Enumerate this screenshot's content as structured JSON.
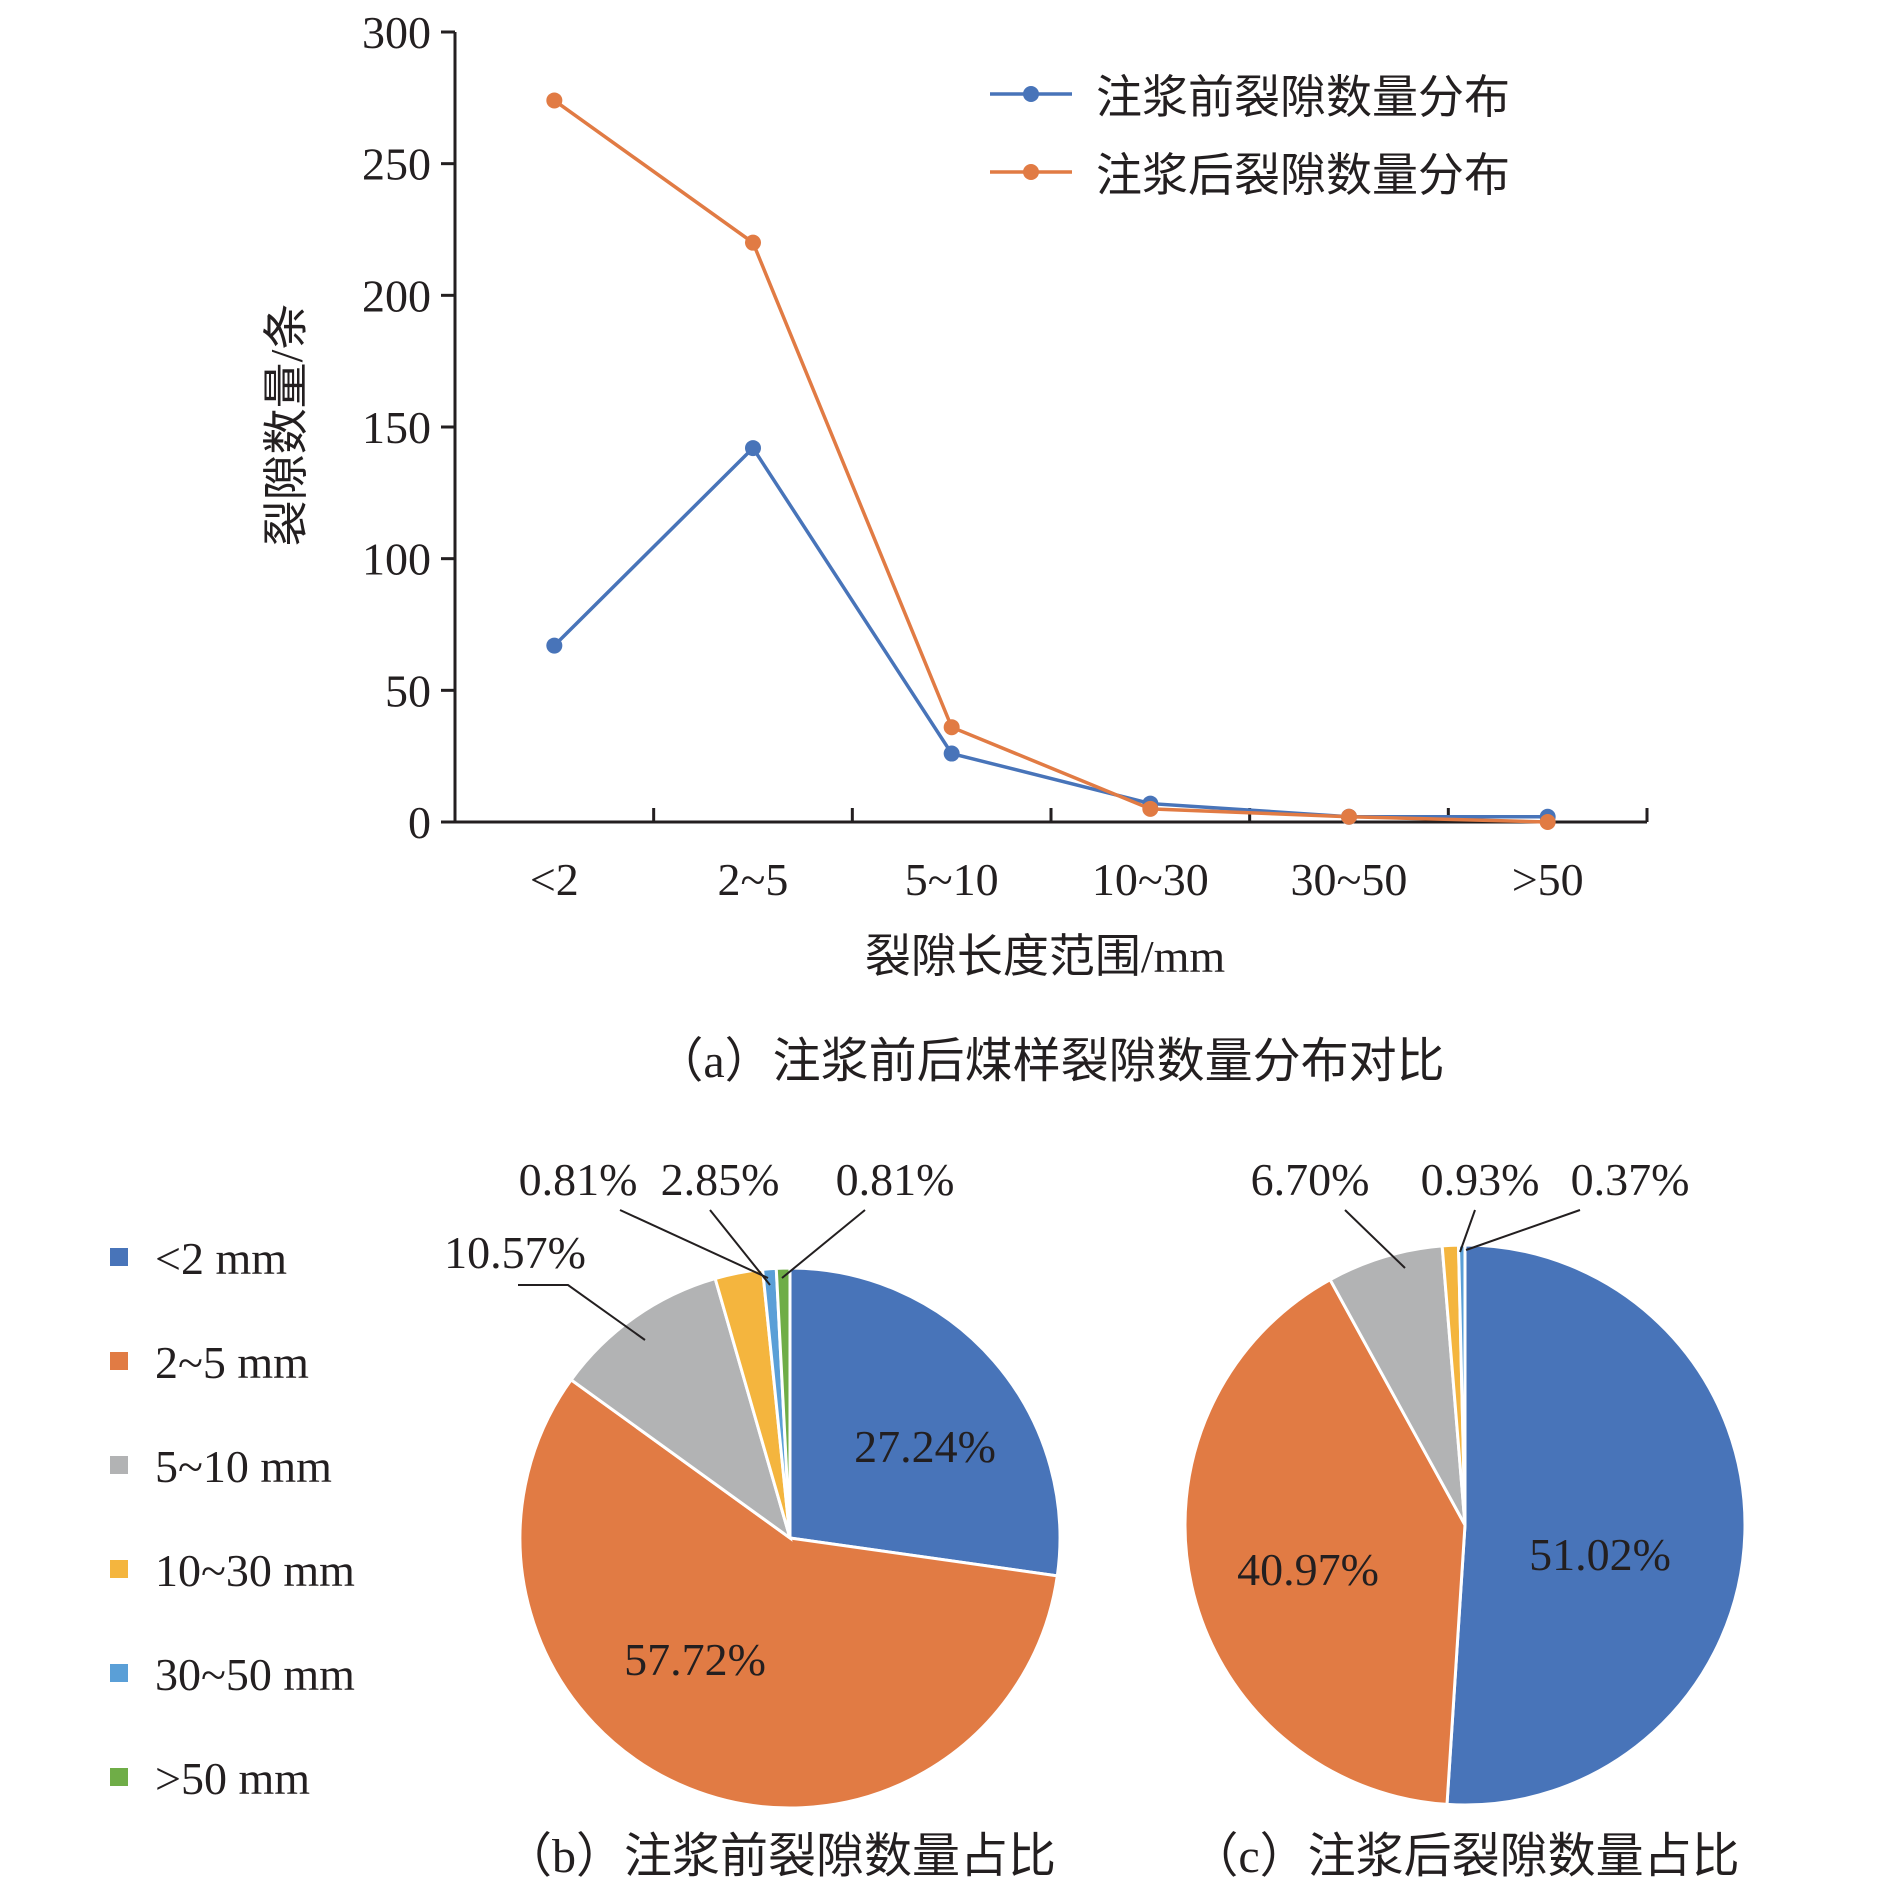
{
  "colors": {
    "blue": "#4874b9",
    "orange": "#e17b44",
    "gray": "#b2b3b4",
    "yellow": "#f4b53e",
    "lightblue": "#5a9fd7",
    "green": "#6fad47",
    "axis": "#231f20"
  },
  "legend_pies": {
    "items": [
      {
        "label": "<2 mm",
        "color": "#4874b9"
      },
      {
        "label": "2~5 mm",
        "color": "#e17b44"
      },
      {
        "label": "5~10 mm",
        "color": "#b2b3b4"
      },
      {
        "label": "10~30 mm",
        "color": "#f4b53e"
      },
      {
        "label": "30~50 mm",
        "color": "#5a9fd7"
      },
      {
        "label": ">50 mm",
        "color": "#6fad47"
      }
    ]
  },
  "chart_data": [
    {
      "type": "line",
      "caption": "（a）注浆前后煤样裂隙数量分布对比",
      "xlabel": "裂隙长度范围/mm",
      "ylabel": "裂隙数量/条",
      "categories": [
        "<2",
        "2~5",
        "5~10",
        "10~30",
        "30~50",
        ">50"
      ],
      "ylim": [
        0,
        300
      ],
      "yticks": [
        0,
        50,
        100,
        150,
        200,
        250,
        300
      ],
      "grid": false,
      "legend_position": "top-right",
      "series": [
        {
          "name": "注浆前裂隙数量分布",
          "color": "#4874b9",
          "values": [
            67,
            142,
            26,
            7,
            2,
            2
          ]
        },
        {
          "name": "注浆后裂隙数量分布",
          "color": "#e17b44",
          "values": [
            274,
            220,
            36,
            5,
            2,
            0
          ]
        }
      ]
    },
    {
      "type": "pie",
      "caption": "（b）注浆前裂隙数量占比",
      "slices": [
        {
          "label": "<2 mm",
          "value": 27.24,
          "text": "27.24%"
        },
        {
          "label": "2~5 mm",
          "value": 57.72,
          "text": "57.72%"
        },
        {
          "label": "5~10 mm",
          "value": 10.57,
          "text": "10.57%"
        },
        {
          "label": "10~30 mm",
          "value": 2.85,
          "text": "2.85%"
        },
        {
          "label": "30~50 mm",
          "value": 0.81,
          "text": "0.81%"
        },
        {
          "label": ">50 mm",
          "value": 0.81,
          "text": "0.81%"
        }
      ]
    },
    {
      "type": "pie",
      "caption": "（c）注浆后裂隙数量占比",
      "slices": [
        {
          "label": "<2 mm",
          "value": 51.02,
          "text": "51.02%"
        },
        {
          "label": "2~5 mm",
          "value": 40.97,
          "text": "40.97%"
        },
        {
          "label": "5~10 mm",
          "value": 6.7,
          "text": "6.70%"
        },
        {
          "label": "10~30 mm",
          "value": 0.93,
          "text": "0.93%"
        },
        {
          "label": "30~50 mm",
          "value": 0.37,
          "text": "0.37%"
        },
        {
          "label": ">50 mm",
          "value": 0,
          "text": ""
        }
      ]
    }
  ]
}
